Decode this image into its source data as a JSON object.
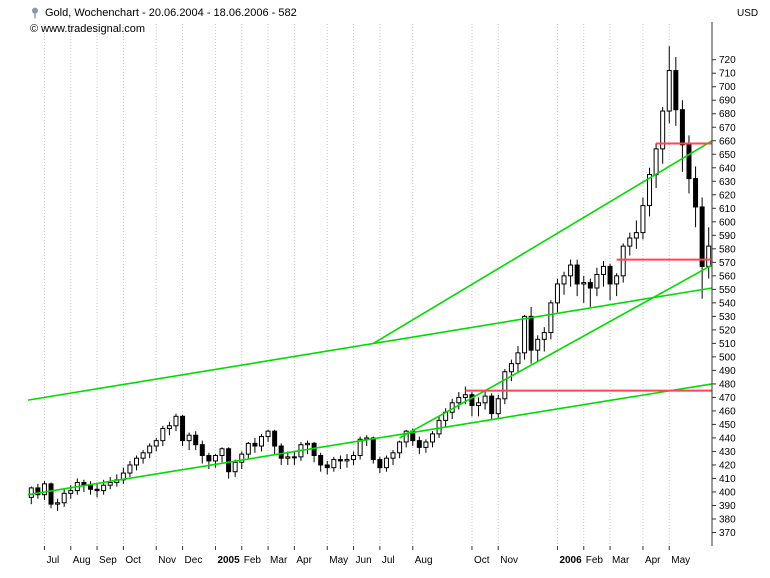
{
  "header": {
    "title": "Gold, Wochenchart - 20.06.2004 - 18.06.2006 - 582",
    "copyright": "© www.tradesignal.com",
    "currency": "USD"
  },
  "chart_data": {
    "type": "candlestick",
    "instrument": "Gold",
    "timeframe": "Wochenchart",
    "date_range": "20.06.2004 - 18.06.2006",
    "last_value": 582,
    "currency": "USD",
    "y_axis": {
      "visible_min": 370,
      "visible_max": 720,
      "tick_step": 10,
      "render_min": 360,
      "render_max": 742,
      "side": "right"
    },
    "x_labels": [
      {
        "label": "Jul",
        "week": 2
      },
      {
        "label": "Aug",
        "week": 6
      },
      {
        "label": "Sep",
        "week": 10
      },
      {
        "label": "Oct",
        "week": 14
      },
      {
        "label": "Nov",
        "week": 19
      },
      {
        "label": "Dec",
        "week": 23
      },
      {
        "label": "2005",
        "week": 28,
        "bold": true
      },
      {
        "label": "Feb",
        "week": 32
      },
      {
        "label": "Mar",
        "week": 36
      },
      {
        "label": "Apr",
        "week": 40
      },
      {
        "label": "May",
        "week": 45
      },
      {
        "label": "Jun",
        "week": 49
      },
      {
        "label": "Jul",
        "week": 53
      },
      {
        "label": "Aug",
        "week": 58
      },
      {
        "label": "Oct",
        "week": 67
      },
      {
        "label": "Nov",
        "week": 71
      },
      {
        "label": "2006",
        "week": 80,
        "bold": true
      },
      {
        "label": "Feb",
        "week": 84
      },
      {
        "label": "Mar",
        "week": 88
      },
      {
        "label": "Apr",
        "week": 93
      },
      {
        "label": "May",
        "week": 97
      }
    ],
    "ohlc": [
      [
        396,
        404,
        391,
        403
      ],
      [
        403,
        406,
        395,
        398
      ],
      [
        398,
        408,
        394,
        406
      ],
      [
        406,
        407,
        388,
        391
      ],
      [
        391,
        395,
        386,
        392
      ],
      [
        392,
        402,
        389,
        399
      ],
      [
        399,
        405,
        395,
        401
      ],
      [
        401,
        410,
        398,
        407
      ],
      [
        407,
        409,
        400,
        405
      ],
      [
        405,
        408,
        398,
        402
      ],
      [
        402,
        407,
        396,
        401
      ],
      [
        401,
        409,
        398,
        405
      ],
      [
        405,
        411,
        402,
        407
      ],
      [
        407,
        413,
        404,
        409
      ],
      [
        409,
        418,
        406,
        414
      ],
      [
        414,
        423,
        411,
        420
      ],
      [
        420,
        427,
        416,
        425
      ],
      [
        425,
        431,
        421,
        429
      ],
      [
        429,
        436,
        425,
        434
      ],
      [
        434,
        440,
        430,
        438
      ],
      [
        438,
        449,
        434,
        447
      ],
      [
        447,
        452,
        442,
        449
      ],
      [
        449,
        458,
        445,
        456
      ],
      [
        456,
        457,
        434,
        438
      ],
      [
        438,
        444,
        431,
        442
      ],
      [
        442,
        445,
        431,
        435
      ],
      [
        435,
        438,
        421,
        427
      ],
      [
        427,
        429,
        417,
        423
      ],
      [
        423,
        428,
        418,
        427
      ],
      [
        427,
        433,
        422,
        432
      ],
      [
        432,
        433,
        410,
        415
      ],
      [
        415,
        424,
        411,
        422
      ],
      [
        422,
        430,
        417,
        428
      ],
      [
        428,
        437,
        424,
        436
      ],
      [
        436,
        440,
        429,
        434
      ],
      [
        434,
        443,
        430,
        441
      ],
      [
        441,
        446,
        437,
        445
      ],
      [
        445,
        446,
        428,
        434
      ],
      [
        434,
        436,
        420,
        425
      ],
      [
        425,
        430,
        420,
        426
      ],
      [
        426,
        430,
        420,
        426
      ],
      [
        426,
        437,
        423,
        435
      ],
      [
        435,
        438,
        428,
        436
      ],
      [
        436,
        437,
        422,
        427
      ],
      [
        427,
        429,
        415,
        420
      ],
      [
        420,
        423,
        413,
        418
      ],
      [
        418,
        426,
        415,
        424
      ],
      [
        424,
        427,
        417,
        423
      ],
      [
        423,
        428,
        418,
        424
      ],
      [
        424,
        430,
        420,
        427
      ],
      [
        427,
        441,
        424,
        439
      ],
      [
        439,
        442,
        434,
        440
      ],
      [
        440,
        441,
        421,
        424
      ],
      [
        424,
        426,
        414,
        418
      ],
      [
        418,
        427,
        415,
        425
      ],
      [
        425,
        431,
        420,
        429
      ],
      [
        429,
        438,
        425,
        437
      ],
      [
        437,
        446,
        433,
        445
      ],
      [
        445,
        447,
        434,
        438
      ],
      [
        438,
        441,
        428,
        433
      ],
      [
        433,
        439,
        429,
        437
      ],
      [
        437,
        445,
        433,
        443
      ],
      [
        443,
        456,
        440,
        453
      ],
      [
        453,
        462,
        448,
        459
      ],
      [
        459,
        469,
        454,
        466
      ],
      [
        466,
        474,
        461,
        470
      ],
      [
        470,
        478,
        465,
        472
      ],
      [
        472,
        474,
        456,
        464
      ],
      [
        464,
        470,
        456,
        466
      ],
      [
        466,
        475,
        461,
        471
      ],
      [
        471,
        473,
        454,
        458
      ],
      [
        458,
        472,
        455,
        469
      ],
      [
        469,
        491,
        465,
        489
      ],
      [
        489,
        498,
        482,
        495
      ],
      [
        495,
        508,
        488,
        503
      ],
      [
        503,
        531,
        498,
        530
      ],
      [
        530,
        537,
        495,
        505
      ],
      [
        505,
        516,
        497,
        513
      ],
      [
        513,
        522,
        504,
        518
      ],
      [
        518,
        542,
        513,
        540
      ],
      [
        540,
        558,
        533,
        554
      ],
      [
        554,
        563,
        546,
        560
      ],
      [
        560,
        572,
        552,
        568
      ],
      [
        568,
        572,
        545,
        554
      ],
      [
        554,
        560,
        540,
        555
      ],
      [
        555,
        558,
        537,
        551
      ],
      [
        551,
        566,
        545,
        561
      ],
      [
        561,
        571,
        552,
        567
      ],
      [
        567,
        569,
        542,
        554
      ],
      [
        554,
        562,
        545,
        560
      ],
      [
        560,
        584,
        555,
        582
      ],
      [
        582,
        592,
        575,
        588
      ],
      [
        588,
        601,
        580,
        592
      ],
      [
        592,
        618,
        587,
        612
      ],
      [
        612,
        640,
        604,
        635
      ],
      [
        635,
        658,
        625,
        654
      ],
      [
        654,
        685,
        643,
        682
      ],
      [
        682,
        730,
        673,
        712
      ],
      [
        712,
        722,
        671,
        683
      ],
      [
        683,
        690,
        637,
        657
      ],
      [
        657,
        664,
        621,
        632
      ],
      [
        632,
        641,
        596,
        611
      ],
      [
        611,
        618,
        543,
        567
      ],
      [
        567,
        596,
        558,
        582
      ]
    ],
    "trend_lines": [
      {
        "name": "steep-channel-upper-line",
        "color": "#00dc00",
        "from": [
          52,
          510
        ],
        "to": [
          103.5,
          660
        ]
      },
      {
        "name": "steep-channel-lower-line",
        "color": "#00dc00",
        "from": [
          56,
          440
        ],
        "to": [
          103.5,
          568
        ]
      },
      {
        "name": "main-channel-upper-line",
        "color": "#00dc00",
        "from": [
          -0.5,
          468
        ],
        "to": [
          103.5,
          551
        ]
      },
      {
        "name": "main-channel-lower-line",
        "color": "#00dc00",
        "from": [
          -0.5,
          398
        ],
        "to": [
          103.5,
          480
        ]
      }
    ],
    "horizontal_lines": [
      {
        "name": "resistance-line-658",
        "color": "#ff4455",
        "value": 658,
        "from_week": 95
      },
      {
        "name": "resistance-line-572",
        "color": "#ff4455",
        "value": 572,
        "from_week": 89
      },
      {
        "name": "resistance-line-475",
        "color": "#ff4455",
        "value": 475,
        "from_week": 66
      }
    ],
    "colors": {
      "up_candle": "#ffffff",
      "down_candle": "#000000",
      "outline": "#000000",
      "grid": "#c9c9c9",
      "axis": "#333333",
      "trend": "#00dc00",
      "resistance": "#ff4455"
    },
    "legend_position": "none",
    "grid": "vertical-dotted"
  }
}
